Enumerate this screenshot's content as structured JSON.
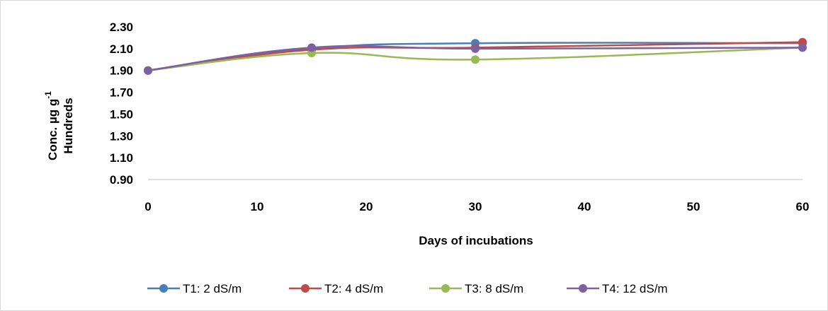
{
  "chart_data": {
    "type": "line",
    "x": [
      0,
      15,
      30,
      60
    ],
    "series": [
      {
        "name": "T1: 2 dS/m",
        "values": [
          1.9,
          2.1,
          2.15,
          2.15
        ],
        "color": "#4a7ebb"
      },
      {
        "name": "T2: 4 dS/m",
        "values": [
          1.9,
          2.09,
          2.11,
          2.16
        ],
        "color": "#be4b48"
      },
      {
        "name": "T3: 8 dS/m",
        "values": [
          1.9,
          2.06,
          2.0,
          2.11
        ],
        "color": "#98b954"
      },
      {
        "name": "T4: 12 dS/m",
        "values": [
          1.9,
          2.11,
          2.1,
          2.11
        ],
        "color": "#7d60a0"
      }
    ],
    "xlabel": "Days of incubations",
    "ylabel_line1": "Conc.  µg g",
    "ylabel_superscript": "-1",
    "ylabel_line2": "Hundreds",
    "xlim": [
      0,
      60
    ],
    "ylim": [
      0.9,
      2.3
    ],
    "x_ticks": [
      "0",
      "10",
      "20",
      "30",
      "40",
      "50",
      "60"
    ],
    "y_ticks": [
      "2.30",
      "2.10",
      "1.90",
      "1.70",
      "1.50",
      "1.30",
      "1.10",
      "0.90"
    ],
    "grid": false,
    "legend_position": "bottom"
  }
}
